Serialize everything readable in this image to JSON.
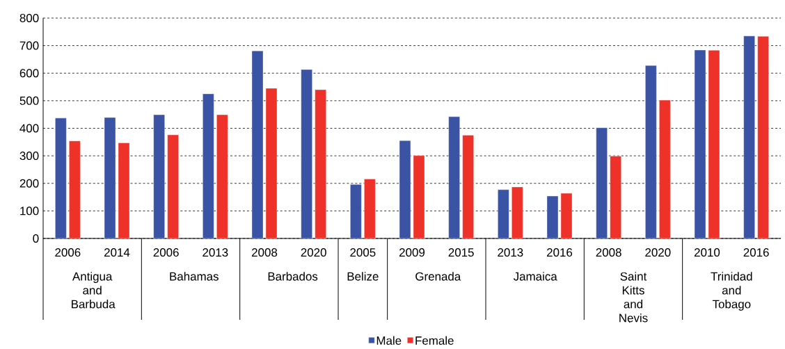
{
  "chart_data": {
    "type": "bar",
    "categories": [
      "2006",
      "2014",
      "2006",
      "2013",
      "2008",
      "2020",
      "2005",
      "2009",
      "2015",
      "2013",
      "2016",
      "2008",
      "2020",
      "2010",
      "2016"
    ],
    "series": [
      {
        "name": "Male",
        "color": "#3a53a4",
        "values": [
          437,
          439,
          449,
          525,
          681,
          613,
          196,
          355,
          442,
          177,
          154,
          402,
          628,
          684,
          735
        ]
      },
      {
        "name": "Female",
        "color": "#ee3129",
        "values": [
          354,
          347,
          376,
          449,
          545,
          540,
          216,
          301,
          375,
          187,
          164,
          299,
          502,
          683,
          734
        ]
      }
    ],
    "annotations": [
      "Antigua and Barbuda",
      "Bahamas",
      "Barbados",
      "Belize",
      "Grenada",
      "Jamaica",
      "Saint Kitts and Nevis",
      "Trinidad and Tobago"
    ],
    "ylim": [
      0,
      800
    ],
    "yticks": [
      0,
      100,
      200,
      300,
      400,
      500,
      600,
      700,
      800
    ],
    "grid": "y",
    "legend": "bottom"
  }
}
